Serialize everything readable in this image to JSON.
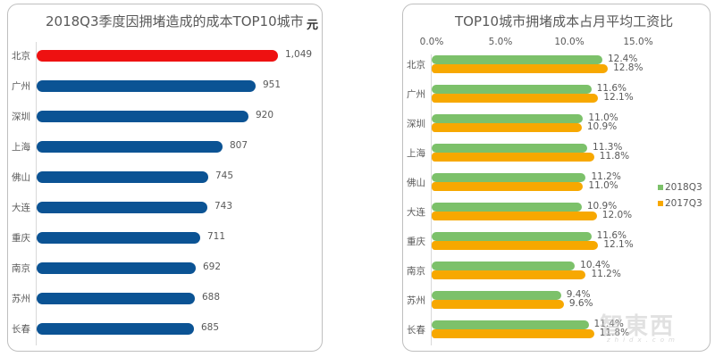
{
  "chart_data": [
    {
      "type": "bar",
      "orientation": "horizontal",
      "title": "2018Q3季度因拥堵造成的成本TOP10城市",
      "unit_label": "元",
      "categories": [
        "北京",
        "广州",
        "深圳",
        "上海",
        "佛山",
        "大连",
        "重庆",
        "南京",
        "苏州",
        "长春"
      ],
      "values": [
        1049,
        951,
        920,
        807,
        745,
        743,
        711,
        692,
        688,
        685
      ],
      "value_labels": [
        "1,049",
        "951",
        "920",
        "807",
        "745",
        "743",
        "711",
        "692",
        "688",
        "685"
      ],
      "colors": {
        "highlight": "#ee1111",
        "default": "#0b5394"
      },
      "highlight_index": 0,
      "xlabel": "",
      "ylabel": "",
      "grid": false
    },
    {
      "type": "bar",
      "orientation": "horizontal",
      "title": "TOP10城市拥堵成本占月平均工资比",
      "categories": [
        "北京",
        "广州",
        "深圳",
        "上海",
        "佛山",
        "大连",
        "重庆",
        "南京",
        "苏州",
        "长春"
      ],
      "x_ticks": [
        "0.0%",
        "5.0%",
        "10.0%",
        "15.0%"
      ],
      "xlim": [
        0,
        15
      ],
      "series": [
        {
          "name": "2018Q3",
          "color": "#7cc16a",
          "values": [
            12.4,
            11.6,
            11.0,
            11.3,
            11.2,
            10.9,
            11.6,
            10.4,
            9.4,
            11.4
          ],
          "labels": [
            "12.4%",
            "11.6%",
            "11.0%",
            "11.3%",
            "11.2%",
            "10.9%",
            "11.6%",
            "10.4%",
            "9.4%",
            "11.4%"
          ]
        },
        {
          "name": "2017Q3",
          "color": "#f7a800",
          "values": [
            12.8,
            12.1,
            10.9,
            11.8,
            11.0,
            12.0,
            12.1,
            11.2,
            9.6,
            11.8
          ],
          "labels": [
            "12.8%",
            "12.1%",
            "10.9%",
            "11.8%",
            "11.0%",
            "12.0%",
            "12.1%",
            "11.2%",
            "9.6%",
            "11.8%"
          ]
        }
      ],
      "legend": {
        "position": "right",
        "entries": [
          "2018Q3",
          "2017Q3"
        ]
      },
      "grid": false
    }
  ],
  "watermark": {
    "text": "智東西",
    "sub": "zhidx.com"
  }
}
